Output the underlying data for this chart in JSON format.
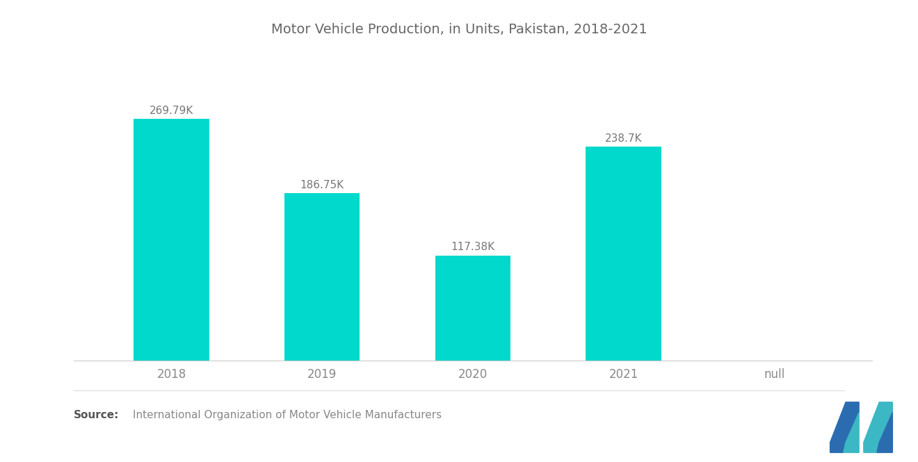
{
  "title": "Motor Vehicle Production, in Units, Pakistan, 2018-2021",
  "categories": [
    "2018",
    "2019",
    "2020",
    "2021",
    "null"
  ],
  "values": [
    269790,
    186750,
    117380,
    238700
  ],
  "labels": [
    "269.79K",
    "186.75K",
    "117.38K",
    "238.7K"
  ],
  "bar_color": "#00D9CC",
  "background_color": "#FFFFFF",
  "ylim": [
    0,
    310000
  ],
  "source_bold": "Source:",
  "source_text": "  International Organization of Motor Vehicle Manufacturers",
  "null_label": "null",
  "title_fontsize": 14,
  "label_fontsize": 11,
  "tick_fontsize": 12,
  "source_fontsize": 11,
  "bar_width": 0.5
}
